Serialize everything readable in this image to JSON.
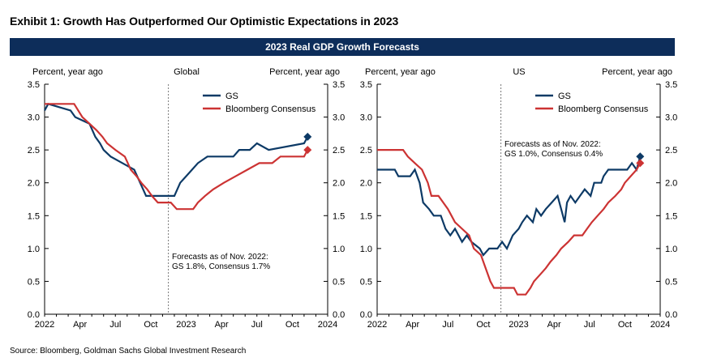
{
  "exhibit_title": "Exhibit 1: Growth Has Outperformed Our Optimistic Expectations in 2023",
  "banner_title": "2023 Real GDP Growth Forecasts",
  "source": "Source: Bloomberg, Goldman Sachs Global Investment Research",
  "colors": {
    "gs": "#0d3a66",
    "consensus": "#cc3333",
    "banner": "#0d2d5a",
    "axis": "#000000",
    "divider": "#555555"
  },
  "chart_data": [
    {
      "type": "line",
      "title": "Global",
      "ylabel_left": "Percent, year ago",
      "ylabel_right": "Percent, year ago",
      "ylim": [
        0,
        3.5
      ],
      "yticks": [
        "0.0",
        "0.5",
        "1.0",
        "1.5",
        "2.0",
        "2.5",
        "3.0",
        "3.5"
      ],
      "xlim": [
        0,
        24
      ],
      "xticks": [
        {
          "x": 0,
          "label": "2022"
        },
        {
          "x": 3,
          "label": "Apr"
        },
        {
          "x": 6,
          "label": "Jul"
        },
        {
          "x": 9,
          "label": "Oct"
        },
        {
          "x": 12,
          "label": "2023"
        },
        {
          "x": 15,
          "label": "Apr"
        },
        {
          "x": 18,
          "label": "Jul"
        },
        {
          "x": 21,
          "label": "Oct"
        },
        {
          "x": 24,
          "label": "2024"
        }
      ],
      "forecast_line_x": 10.5,
      "annotation": [
        "Forecasts as of Nov. 2022:",
        "GS 1.8%, Consensus 1.7%"
      ],
      "legend": [
        "GS",
        "Bloomberg Consensus"
      ],
      "series": [
        {
          "name": "GS",
          "role": "gs",
          "end_marker": [
            22.3,
            2.7
          ],
          "points": [
            [
              0,
              3.1
            ],
            [
              0.3,
              3.2
            ],
            [
              2.2,
              3.1
            ],
            [
              2.6,
              3.0
            ],
            [
              3.8,
              2.9
            ],
            [
              4.3,
              2.7
            ],
            [
              4.7,
              2.6
            ],
            [
              5.0,
              2.5
            ],
            [
              5.6,
              2.4
            ],
            [
              6.6,
              2.3
            ],
            [
              7.6,
              2.2
            ],
            [
              8.1,
              2.0
            ],
            [
              8.6,
              1.8
            ],
            [
              10.0,
              1.8
            ],
            [
              11.0,
              1.8
            ],
            [
              11.5,
              2.0
            ],
            [
              12.0,
              2.1
            ],
            [
              12.5,
              2.2
            ],
            [
              13.0,
              2.3
            ],
            [
              13.8,
              2.4
            ],
            [
              16.0,
              2.4
            ],
            [
              16.5,
              2.5
            ],
            [
              17.4,
              2.5
            ],
            [
              18.0,
              2.6
            ],
            [
              19.0,
              2.5
            ],
            [
              22.0,
              2.6
            ],
            [
              22.3,
              2.7
            ]
          ]
        },
        {
          "name": "Bloomberg Consensus",
          "role": "consensus",
          "end_marker": [
            22.3,
            2.5
          ],
          "points": [
            [
              0,
              3.2
            ],
            [
              2.5,
              3.2
            ],
            [
              3.2,
              3.0
            ],
            [
              3.8,
              2.9
            ],
            [
              4.4,
              2.8
            ],
            [
              4.9,
              2.7
            ],
            [
              5.3,
              2.6
            ],
            [
              6.0,
              2.5
            ],
            [
              6.8,
              2.4
            ],
            [
              7.3,
              2.2
            ],
            [
              7.8,
              2.1
            ],
            [
              8.2,
              2.0
            ],
            [
              8.7,
              1.9
            ],
            [
              9.1,
              1.8
            ],
            [
              9.6,
              1.7
            ],
            [
              10.7,
              1.7
            ],
            [
              11.2,
              1.6
            ],
            [
              12.6,
              1.6
            ],
            [
              13.0,
              1.7
            ],
            [
              13.6,
              1.8
            ],
            [
              14.3,
              1.9
            ],
            [
              15.2,
              2.0
            ],
            [
              16.2,
              2.1
            ],
            [
              17.2,
              2.2
            ],
            [
              18.2,
              2.3
            ],
            [
              19.3,
              2.3
            ],
            [
              20.0,
              2.4
            ],
            [
              22.0,
              2.4
            ],
            [
              22.3,
              2.5
            ]
          ]
        }
      ]
    },
    {
      "type": "line",
      "title": "US",
      "ylabel_left": "Percent, year ago",
      "ylabel_right": "Percent, year ago",
      "ylim": [
        0,
        3.5
      ],
      "yticks": [
        "0.0",
        "0.5",
        "1.0",
        "1.5",
        "2.0",
        "2.5",
        "3.0",
        "3.5"
      ],
      "xlim": [
        0,
        24
      ],
      "xticks": [
        {
          "x": 0,
          "label": "2022"
        },
        {
          "x": 3,
          "label": "Apr"
        },
        {
          "x": 6,
          "label": "Jul"
        },
        {
          "x": 9,
          "label": "Oct"
        },
        {
          "x": 12,
          "label": "2023"
        },
        {
          "x": 15,
          "label": "Apr"
        },
        {
          "x": 18,
          "label": "Jul"
        },
        {
          "x": 21,
          "label": "Oct"
        },
        {
          "x": 24,
          "label": "2024"
        }
      ],
      "forecast_line_x": 10.5,
      "annotation": [
        "Forecasts as of Nov. 2022:",
        "GS 1.0%, Consensus 0.4%"
      ],
      "legend": [
        "GS",
        "Bloomberg Consensus"
      ],
      "series": [
        {
          "name": "GS",
          "role": "gs",
          "end_marker": [
            22.3,
            2.4
          ],
          "points": [
            [
              0,
              2.2
            ],
            [
              1.5,
              2.2
            ],
            [
              1.8,
              2.1
            ],
            [
              2.8,
              2.1
            ],
            [
              3.2,
              2.2
            ],
            [
              3.6,
              2.0
            ],
            [
              3.9,
              1.7
            ],
            [
              4.4,
              1.6
            ],
            [
              4.8,
              1.5
            ],
            [
              5.4,
              1.5
            ],
            [
              5.8,
              1.3
            ],
            [
              6.2,
              1.2
            ],
            [
              6.6,
              1.3
            ],
            [
              7.2,
              1.1
            ],
            [
              7.6,
              1.2
            ],
            [
              8.0,
              1.1
            ],
            [
              8.7,
              1.0
            ],
            [
              9.0,
              0.9
            ],
            [
              9.5,
              1.0
            ],
            [
              10.2,
              1.0
            ],
            [
              10.6,
              1.1
            ],
            [
              11.0,
              1.0
            ],
            [
              11.5,
              1.2
            ],
            [
              12.0,
              1.3
            ],
            [
              12.3,
              1.4
            ],
            [
              12.7,
              1.5
            ],
            [
              13.2,
              1.4
            ],
            [
              13.5,
              1.6
            ],
            [
              13.9,
              1.5
            ],
            [
              14.3,
              1.6
            ],
            [
              14.8,
              1.7
            ],
            [
              15.3,
              1.8
            ],
            [
              15.6,
              1.6
            ],
            [
              15.9,
              1.4
            ],
            [
              16.1,
              1.7
            ],
            [
              16.4,
              1.8
            ],
            [
              16.8,
              1.7
            ],
            [
              17.2,
              1.8
            ],
            [
              17.6,
              1.9
            ],
            [
              18.1,
              1.8
            ],
            [
              18.4,
              2.0
            ],
            [
              19.0,
              2.0
            ],
            [
              19.2,
              2.1
            ],
            [
              19.6,
              2.2
            ],
            [
              21.2,
              2.2
            ],
            [
              21.6,
              2.3
            ],
            [
              22.0,
              2.2
            ],
            [
              22.3,
              2.4
            ]
          ]
        },
        {
          "name": "Bloomberg Consensus",
          "role": "consensus",
          "end_marker": [
            22.3,
            2.3
          ],
          "points": [
            [
              0,
              2.5
            ],
            [
              2.2,
              2.5
            ],
            [
              2.6,
              2.4
            ],
            [
              3.2,
              2.3
            ],
            [
              3.8,
              2.2
            ],
            [
              4.3,
              2.0
            ],
            [
              4.6,
              1.8
            ],
            [
              5.2,
              1.8
            ],
            [
              6.0,
              1.6
            ],
            [
              6.6,
              1.4
            ],
            [
              7.2,
              1.3
            ],
            [
              7.8,
              1.2
            ],
            [
              8.2,
              1.0
            ],
            [
              8.8,
              0.9
            ],
            [
              9.2,
              0.7
            ],
            [
              9.6,
              0.5
            ],
            [
              9.9,
              0.4
            ],
            [
              11.6,
              0.4
            ],
            [
              11.9,
              0.3
            ],
            [
              12.6,
              0.3
            ],
            [
              13.0,
              0.4
            ],
            [
              13.3,
              0.5
            ],
            [
              13.8,
              0.6
            ],
            [
              14.3,
              0.7
            ],
            [
              14.7,
              0.8
            ],
            [
              15.2,
              0.9
            ],
            [
              15.6,
              1.0
            ],
            [
              16.2,
              1.1
            ],
            [
              16.7,
              1.2
            ],
            [
              17.4,
              1.2
            ],
            [
              17.8,
              1.3
            ],
            [
              18.2,
              1.4
            ],
            [
              18.7,
              1.5
            ],
            [
              19.2,
              1.6
            ],
            [
              19.6,
              1.7
            ],
            [
              20.2,
              1.8
            ],
            [
              20.7,
              1.9
            ],
            [
              21.0,
              2.0
            ],
            [
              21.5,
              2.1
            ],
            [
              22.0,
              2.2
            ],
            [
              22.3,
              2.3
            ]
          ]
        }
      ]
    }
  ]
}
